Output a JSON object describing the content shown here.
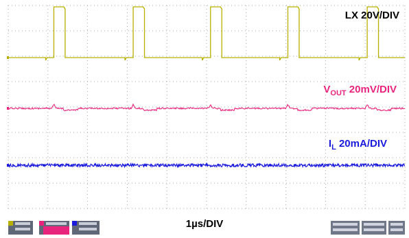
{
  "chart_data": {
    "type": "line",
    "x_unit": "µs",
    "xlim": [
      0,
      10
    ],
    "time_scale_label": "1µs/DIV",
    "grid": true,
    "series": [
      {
        "name": "LX",
        "scale_label": "LX 20V/DIV",
        "unit": "V",
        "color": "#b8b000",
        "ylim": [
          -80,
          80
        ],
        "switch_on_times_us": [
          1.15,
          3.15,
          5.1,
          7.05,
          9.05
        ],
        "pulse_width_us": 0.25,
        "high_level": 40,
        "low_level": 0
      },
      {
        "name": "VOUT",
        "label_main": "V",
        "label_sub": "OUT",
        "label_rest": " 20mV/DIV",
        "unit": "mV",
        "color": "#e8247c",
        "ylim": [
          -80,
          80
        ],
        "level": 0,
        "ripple_pp": 8
      },
      {
        "name": "IL",
        "label_main": "I",
        "label_sub": "L",
        "label_rest": " 20mA/DIV",
        "unit": "mA",
        "color": "#1a1adc",
        "ylim": [
          -80,
          80
        ],
        "level": 0,
        "noise_pp": 5
      }
    ],
    "status": {
      "left_channel_colors": [
        "#b8b000",
        "#e8247c",
        "#1a1adc"
      ],
      "right_colors": [
        "#9aa0b0",
        "#b0b4c0"
      ]
    }
  }
}
